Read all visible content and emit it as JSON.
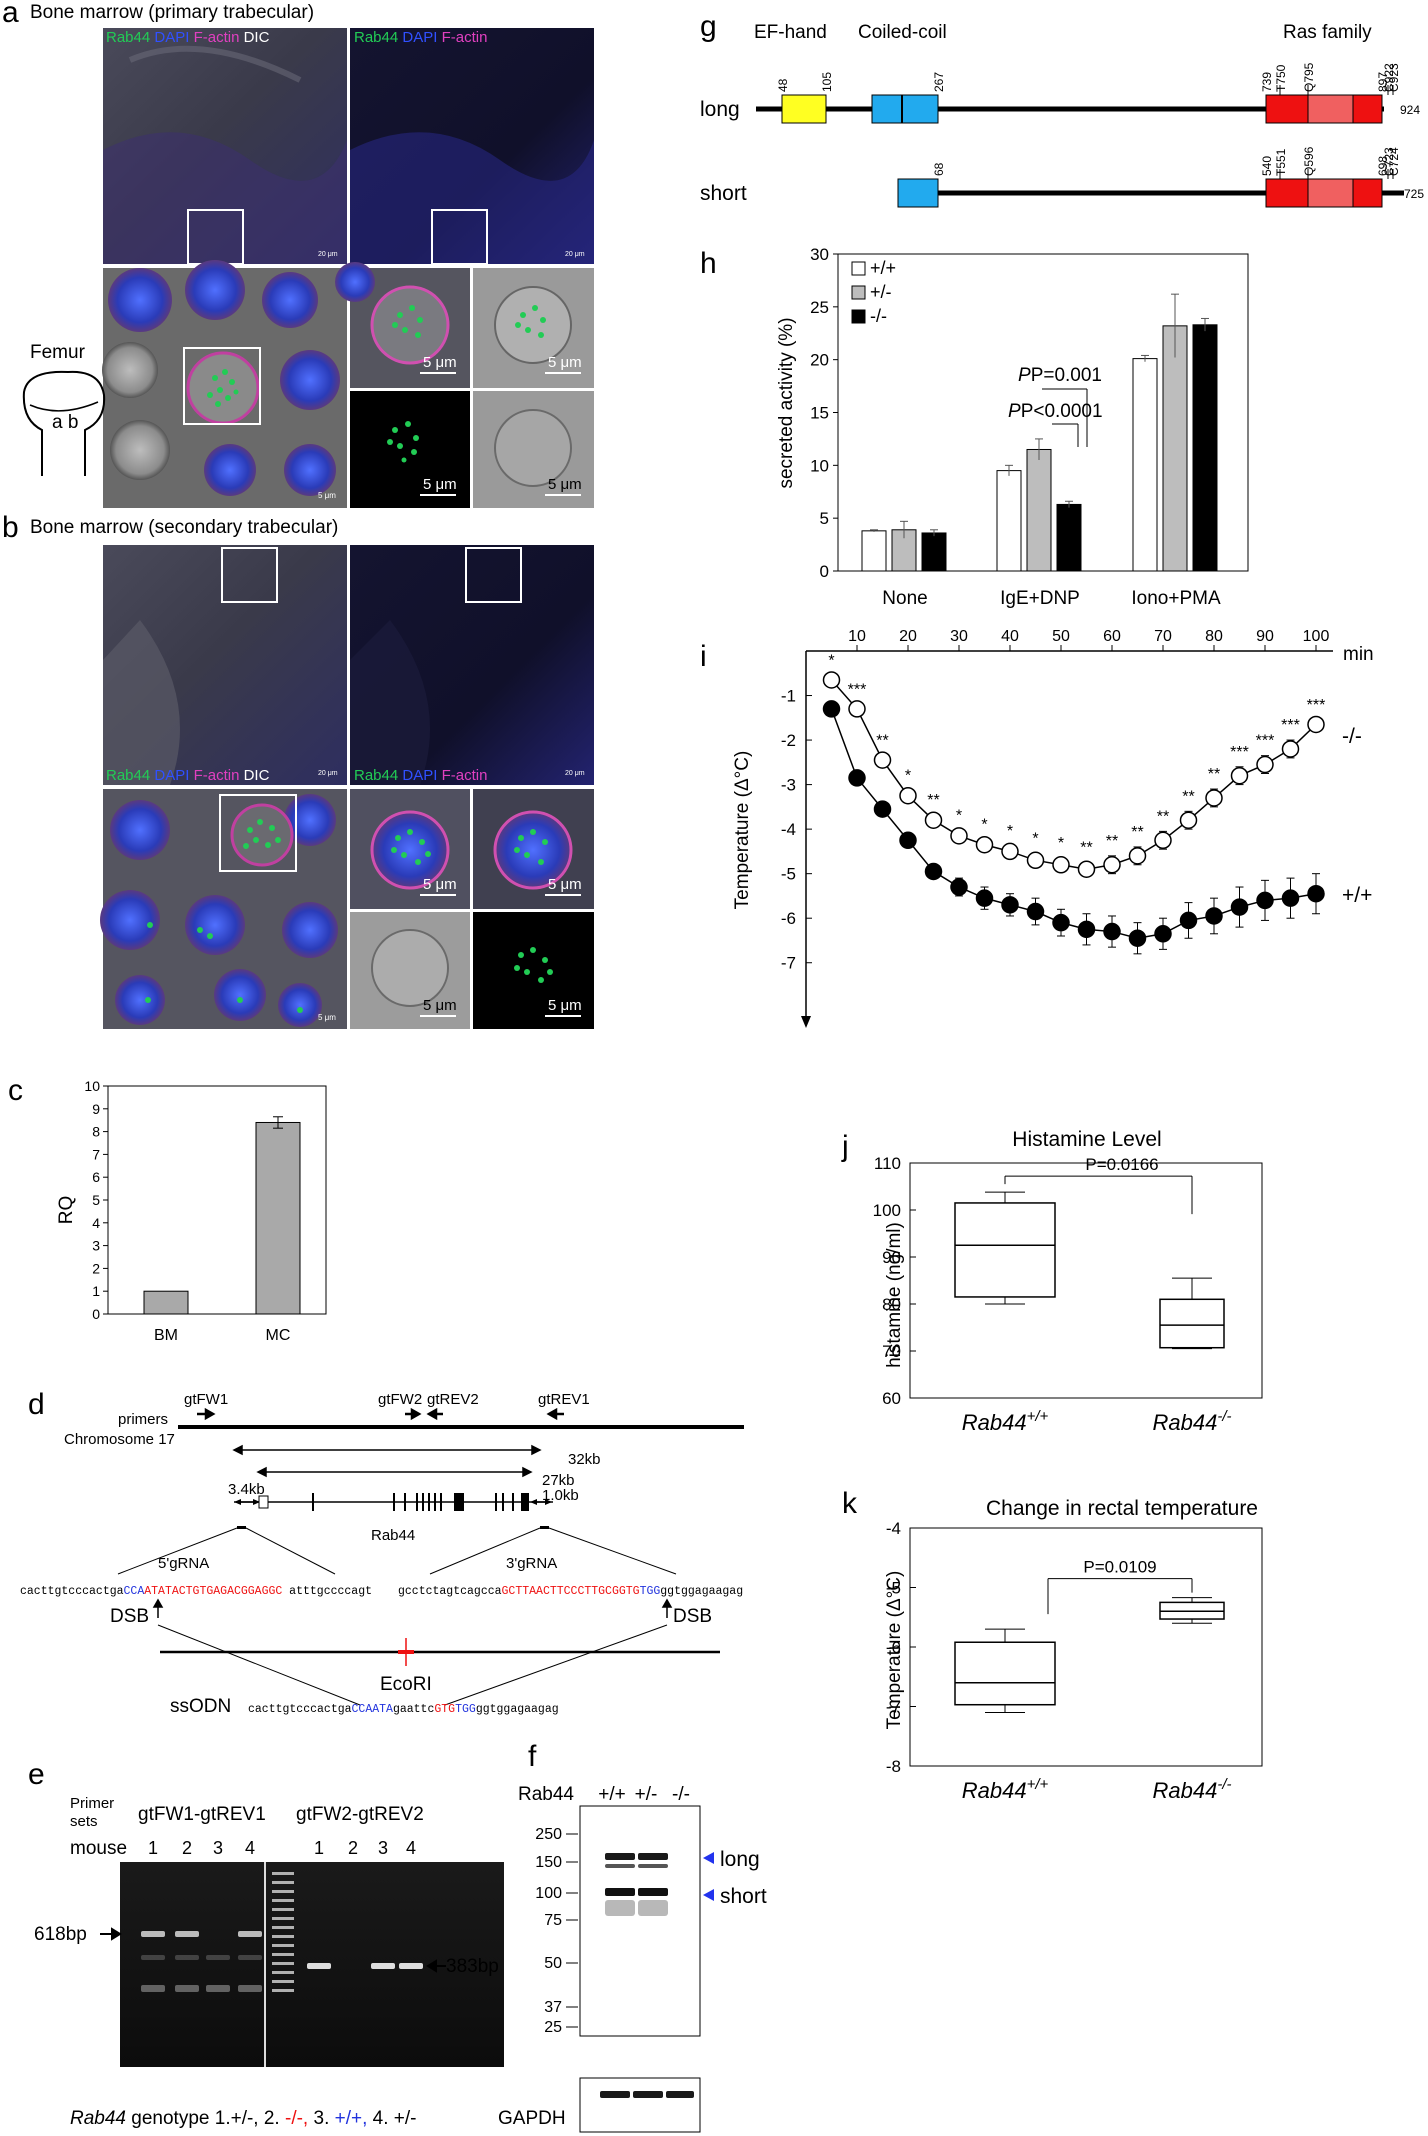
{
  "colors": {
    "rab44": "#22cc55",
    "dapi": "#3050ff",
    "factin": "#e040c0",
    "ef_hand": "#ffff22",
    "coiled_coil": "#22aaee",
    "ras_dark": "#ee1111",
    "ras_light": "#f06060",
    "grey_bar": "#a9a9a9",
    "red_text": "#ee1111",
    "blue_text": "#2233dd",
    "marker_blue": "#2233ee"
  },
  "panel_a": {
    "letter": "a",
    "title": "Bone marrow (primary trabecular)",
    "legend_left": {
      "rab44": "Rab44",
      "dapi": "DAPI",
      "factin": "F-actin",
      "dic": "DIC"
    },
    "legend_right": {
      "rab44": "Rab44",
      "dapi": "DAPI",
      "factin": "F-actin"
    },
    "scale_small": "20 μm",
    "scale_cell": "5 μm",
    "femur_label": "Femur",
    "femur_marks": "a b"
  },
  "panel_b": {
    "letter": "b",
    "title": "Bone marrow (secondary trabecular)",
    "legend_left": {
      "rab44": "Rab44",
      "dapi": "DAPI",
      "factin": "F-actin",
      "dic": "DIC"
    },
    "legend_right": {
      "rab44": "Rab44",
      "dapi": "DAPI",
      "factin": "F-actin"
    },
    "scale_small": "20 μm",
    "scale_cell": "5 μm"
  },
  "panel_c": {
    "letter": "c",
    "chart_data": {
      "type": "bar",
      "categories": [
        "BM",
        "MC"
      ],
      "values": [
        1.0,
        8.4
      ],
      "errors": [
        0,
        0.25
      ],
      "ylabel": "RQ",
      "ylim": [
        0,
        10
      ],
      "yticks": [
        "0",
        "1",
        "2",
        "3",
        "4",
        "5",
        "6",
        "7",
        "8",
        "9",
        "10"
      ]
    }
  },
  "panel_d": {
    "letter": "d",
    "primers_label": "primers",
    "chromosome_label": "Chromosome 17",
    "primer_names": [
      "gtFW1",
      "gtFW2",
      "gtREV2",
      "gtREV1"
    ],
    "dist_32": "32kb",
    "dist_27": "27kb",
    "dist_3_4": "3.4kb",
    "dist_1_0": "1.0kb",
    "gene_label": "Rab44",
    "grna5_label": "5'gRNA",
    "grna3_label": "3'gRNA",
    "seq5": {
      "pre": "cacttgtcccactga",
      "pam": "CCA",
      "target": "ATATACTGTGAGACGGAGGC",
      "post": " atttgccccagt"
    },
    "seq3": {
      "pre": "gcctctagtcagcca",
      "target": "GCTTAACTTCCCTTGCGGTG",
      "pam": "TGG",
      "post": "ggtggagaagag"
    },
    "dsb": "DSB",
    "ecori": "EcoRI",
    "ssodn_label": "ssODN",
    "ssodn": {
      "pre": "cacttgtcccactga",
      "b1": "CCAATA",
      "mid": "gaattc",
      "r1": "GTG",
      "b2": "TGG",
      "post": "ggtggagaagag"
    }
  },
  "panel_e": {
    "letter": "e",
    "primer_sets_label": "Primer sets",
    "set1": "gtFW1-gtREV1",
    "set2": "gtFW2-gtREV2",
    "mouse_label": "mouse",
    "lanes": [
      "1",
      "2",
      "3",
      "4"
    ],
    "band1": "618bp",
    "band2": "383bp",
    "genotype_label": "Rab44",
    "genotype_word": " genotype ",
    "genotypes": [
      "1.+/-,",
      "2.",
      "-/-,",
      "3.",
      "+/+,",
      "4. +/-"
    ]
  },
  "panel_f": {
    "letter": "f",
    "protein": "Rab44",
    "lanes": [
      "+/+",
      "+/-",
      "-/-"
    ],
    "markers": [
      "250",
      "150",
      "100",
      "75",
      "50",
      "37",
      "25"
    ],
    "long": "long",
    "short": "short",
    "loading": "GAPDH"
  },
  "panel_g": {
    "letter": "g",
    "domains": [
      "EF-hand",
      "Coiled-coil",
      "Ras family"
    ],
    "long_label": "long",
    "short_label": "short",
    "long_marks": [
      "48",
      "105",
      "267",
      "739",
      "T750",
      "Q795",
      "897",
      "C922",
      "C923"
    ],
    "long_end": "924",
    "short_marks": [
      "68",
      "540",
      "T551",
      "Q596",
      "698",
      "C723",
      "C724"
    ],
    "short_end": "725"
  },
  "panel_h": {
    "letter": "h",
    "chart_data": {
      "type": "bar",
      "categories": [
        "None",
        "IgE+DNP",
        "Iono+PMA"
      ],
      "series": [
        {
          "name": "+/+",
          "values": [
            3.8,
            9.5,
            20.1
          ],
          "errors": [
            0.1,
            0.5,
            0.3
          ]
        },
        {
          "name": "+/-",
          "values": [
            3.9,
            11.5,
            23.2
          ],
          "errors": [
            0.8,
            1.0,
            3.0
          ]
        },
        {
          "name": "-/-",
          "values": [
            3.6,
            6.3,
            23.3
          ],
          "errors": [
            0.3,
            0.3,
            0.6
          ]
        }
      ],
      "ylabel": "secreted activity (%)",
      "ylim": [
        0,
        30
      ],
      "yticks": [
        "0",
        "5",
        "10",
        "15",
        "20",
        "25",
        "30"
      ],
      "annotations": [
        "P=0.001",
        "P<0.0001"
      ]
    }
  },
  "panel_i": {
    "letter": "i",
    "chart_data": {
      "type": "line",
      "xlabel": "min",
      "ylabel": "Temperature (Δ°C)",
      "x": [
        5,
        10,
        15,
        20,
        25,
        30,
        35,
        40,
        45,
        50,
        55,
        60,
        65,
        70,
        75,
        80,
        85,
        90,
        95,
        100
      ],
      "xticks": [
        "10",
        "20",
        "30",
        "40",
        "50",
        "60",
        "70",
        "80",
        "90",
        "100"
      ],
      "yticks": [
        "-1",
        "-2",
        "-3",
        "-4",
        "-5",
        "-6",
        "-7"
      ],
      "xlim": [
        0,
        100
      ],
      "ylim": [
        -7.5,
        0
      ],
      "series": [
        {
          "name": "-/-",
          "values": [
            -0.65,
            -1.3,
            -2.45,
            -3.25,
            -3.8,
            -4.15,
            -4.35,
            -4.5,
            -4.7,
            -4.8,
            -4.9,
            -4.8,
            -4.6,
            -4.25,
            -3.8,
            -3.3,
            -2.8,
            -2.55,
            -2.2,
            -1.65
          ],
          "errors": [
            0.1,
            0.1,
            0.1,
            0.12,
            0.12,
            0.12,
            0.12,
            0.12,
            0.15,
            0.15,
            0.15,
            0.2,
            0.2,
            0.2,
            0.2,
            0.2,
            0.2,
            0.2,
            0.2,
            0.1
          ]
        },
        {
          "name": "+/+",
          "values": [
            -1.3,
            -2.85,
            -3.55,
            -4.25,
            -4.95,
            -5.3,
            -5.55,
            -5.7,
            -5.85,
            -6.1,
            -6.25,
            -6.3,
            -6.45,
            -6.35,
            -6.05,
            -5.95,
            -5.75,
            -5.6,
            -5.55,
            -5.45
          ],
          "errors": [
            0.1,
            0.1,
            0.1,
            0.15,
            0.15,
            0.2,
            0.25,
            0.25,
            0.3,
            0.3,
            0.35,
            0.35,
            0.35,
            0.35,
            0.4,
            0.4,
            0.45,
            0.45,
            0.45,
            0.45
          ]
        }
      ],
      "significance": [
        "*",
        "***",
        "**",
        "*",
        "**",
        "*",
        "*",
        "*",
        "*",
        "*",
        "**",
        "**",
        "**",
        "**",
        "**",
        "**",
        "***",
        "***",
        "***",
        "***"
      ]
    }
  },
  "panel_j": {
    "letter": "j",
    "chart_data": {
      "type": "box",
      "title": "Histamine Level",
      "ylabel": "histamine (ng/ml)",
      "ylim": [
        60,
        110
      ],
      "yticks": [
        "60",
        "70",
        "80",
        "90",
        "100",
        "110"
      ],
      "categories": [
        "Rab44",
        "Rab44"
      ],
      "category_sup": [
        "+/+",
        "-/-"
      ],
      "boxes": [
        {
          "min": 80.0,
          "q1": 81.5,
          "median": 92.5,
          "q3": 101.5,
          "max": 103.8
        },
        {
          "min": 70.5,
          "q1": 70.7,
          "median": 75.5,
          "q3": 81.0,
          "max": 85.5
        }
      ],
      "annotation": "P=0.0166"
    }
  },
  "panel_k": {
    "letter": "k",
    "chart_data": {
      "type": "box",
      "title": "Change in rectal temperature",
      "ylabel": "Temperature (Δ°C)",
      "ylim": [
        -8,
        -4
      ],
      "yticks": [
        "-4",
        "-5",
        "-6",
        "-7",
        "-8"
      ],
      "categories": [
        "Rab44",
        "Rab44"
      ],
      "category_sup": [
        "+/+",
        "-/-"
      ],
      "boxes": [
        {
          "min": -7.1,
          "q1": -6.97,
          "median": -6.6,
          "q3": -5.92,
          "max": -5.7
        },
        {
          "min": -5.6,
          "q1": -5.53,
          "median": -5.4,
          "q3": -5.25,
          "max": -5.17
        }
      ],
      "annotation": "P=0.0109"
    }
  }
}
